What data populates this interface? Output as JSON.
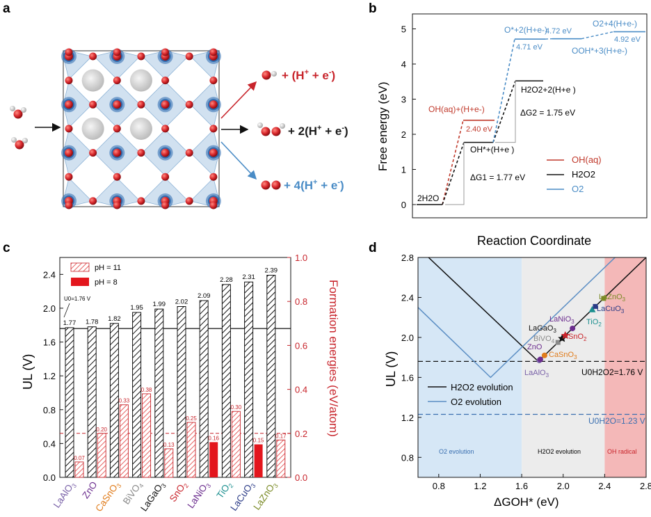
{
  "figure": {
    "panel_labels": {
      "a": "a",
      "b": "b",
      "c": "c",
      "d": "d"
    }
  },
  "panel_a": {
    "paths": [
      {
        "text": "+ (H",
        "sup": "+",
        "text2": " + e",
        "sup2": "-",
        "text3": ")",
        "color": "#c8242b"
      },
      {
        "text": "+ 2(H",
        "sup": "+",
        "text2": " + e",
        "sup2": "-",
        "text3": ")",
        "color": "#1a1a1a"
      },
      {
        "text": "+ 4(H",
        "sup": "+",
        "text2": " + e",
        "sup2": "-",
        "text3": ")",
        "color": "#4a8cc6"
      }
    ],
    "colors": {
      "oxygen": "#d7262b",
      "metal_blue": "#2d6bb0",
      "octahedron": "#c9dcee",
      "a_site": "#d0d0d0",
      "frame": "#555555"
    }
  },
  "panel_b": {
    "chart_data": {
      "type": "line",
      "title": "",
      "xlabel": "Reaction Coordinate",
      "ylabel": "Free energy (eV)",
      "ylim": [
        -0.3,
        5.5
      ],
      "yticks": [
        0,
        1,
        2,
        3,
        4,
        5
      ],
      "x_states": [
        0,
        1,
        2,
        3
      ],
      "series": [
        {
          "name": "OH(aq)",
          "color": "#c0392b",
          "levels": [
            0,
            2.4
          ]
        },
        {
          "name": "H2O2",
          "color": "#111111",
          "levels": [
            0,
            1.77,
            3.52
          ]
        },
        {
          "name": "O2",
          "color": "#4a8cc6",
          "levels": [
            0,
            4.71,
            4.72,
            4.92
          ]
        }
      ],
      "level_labels": {
        "start": "2H2O",
        "oh_aq": "OH(aq)+(H+e-)",
        "oh_star": "OH*+(H+e )",
        "h2o2": "H2O2+2(H+e )",
        "o_star": "O*+2(H+e-)",
        "ooh_star": "OOH*+3(H+e-)",
        "o2": "O2+4(H+e-)"
      },
      "annotations": {
        "v240": "2.40 eV",
        "dg1": "ΔG1 = 1.77 eV",
        "dg2": "ΔG2 = 1.75 eV",
        "v471": "4.71 eV",
        "v472": "4.72 eV",
        "v492": "4.92 eV"
      },
      "legend": [
        "OH(aq)",
        "H2O2",
        "O2"
      ],
      "legend_position": "bottom-right"
    }
  },
  "panel_c": {
    "chart_data": {
      "type": "bar",
      "title": "",
      "ylabel_left": "UL (V)",
      "ylabel_right": "Formation energies (eV/atom)",
      "ylim_left": [
        0,
        2.6
      ],
      "ylim_right": [
        0,
        1.0
      ],
      "yticks_left": [
        0.0,
        0.4,
        0.8,
        1.2,
        1.6,
        2.0,
        2.4
      ],
      "yticks_right": [
        0.0,
        0.2,
        0.4,
        0.6,
        0.8,
        1.0
      ],
      "categories": [
        "LaAlO3",
        "ZnO",
        "CaSnO3",
        "BiVO4",
        "LaGaO3",
        "SnO2",
        "LaNiO3",
        "TiO2",
        "LaCuO3",
        "LaZnO3"
      ],
      "category_colors": [
        "#7a62a8",
        "#6b2d8e",
        "#e07b1a",
        "#8a8a8a",
        "#111111",
        "#c8242b",
        "#6b2d8e",
        "#1b8f8f",
        "#2a3a86",
        "#7a8a25"
      ],
      "series": [
        {
          "name": "UL",
          "values": [
            1.77,
            1.78,
            1.82,
            1.95,
            1.99,
            2.02,
            2.09,
            2.28,
            2.31,
            2.39
          ]
        },
        {
          "name": "pH = 11",
          "values": [
            0.07,
            0.2,
            0.33,
            0.38,
            0.13,
            0.25,
            null,
            0.3,
            null,
            0.17
          ]
        },
        {
          "name": "pH = 8",
          "values": [
            null,
            null,
            null,
            null,
            null,
            null,
            0.16,
            null,
            0.15,
            null
          ]
        }
      ],
      "ul_labels": [
        "1.77",
        "1.78",
        "1.82",
        "1.95",
        "1.99",
        "2.02",
        "2.09",
        "2.28",
        "2.31",
        "2.39"
      ],
      "fe_labels": [
        "0.07",
        "0.20",
        "0.33",
        "0.38",
        "0.13",
        "0.25",
        "0.16",
        "0.30",
        "0.15",
        "0.17"
      ],
      "reference": {
        "label": "U0=1.76 V",
        "value": 1.76
      },
      "red_dash_right": 0.2,
      "legend": [
        "pH = 11",
        "pH = 8"
      ]
    }
  },
  "panel_d": {
    "chart_data": {
      "type": "line",
      "title": "",
      "xlabel": "ΔGOH* (eV)",
      "ylabel": "UL (V)",
      "xlim": [
        0.6,
        2.8
      ],
      "ylim": [
        0.6,
        2.8
      ],
      "xticks": [
        0.8,
        1.2,
        1.6,
        2.0,
        2.4,
        2.8
      ],
      "yticks": [
        0.8,
        1.2,
        1.6,
        2.0,
        2.4,
        2.8
      ],
      "regions": [
        {
          "label": "O2 evolution",
          "x": [
            0.6,
            1.6
          ],
          "color": "#d6e7f6"
        },
        {
          "label": "H2O2 evolution",
          "x": [
            1.6,
            2.4
          ],
          "color": "#ececec"
        },
        {
          "label": "OH radical",
          "x": [
            2.4,
            2.8
          ],
          "color": "#f4b8b8"
        }
      ],
      "series": [
        {
          "name": "H2O2 evolution",
          "color": "#111111",
          "x": [
            0.6,
            1.76,
            2.8
          ],
          "y": [
            2.9,
            1.76,
            2.8
          ]
        },
        {
          "name": "O2 evolution",
          "color": "#5b8ec4",
          "x": [
            0.6,
            1.3,
            2.8
          ],
          "y": [
            2.3,
            1.6,
            3.1
          ]
        }
      ],
      "points": [
        {
          "label": "LaAlO3",
          "x": 1.77,
          "y": 1.77,
          "color": "#7a62a8"
        },
        {
          "label": "ZnO",
          "x": 1.78,
          "y": 1.78,
          "color": "#6b2d8e"
        },
        {
          "label": "CaSnO3",
          "x": 1.82,
          "y": 1.82,
          "color": "#e07b1a"
        },
        {
          "label": "BiVO4",
          "x": 1.95,
          "y": 1.95,
          "color": "#8a8a8a"
        },
        {
          "label": "LaGaO3",
          "x": 1.99,
          "y": 1.99,
          "color": "#111111"
        },
        {
          "label": "SnO2",
          "x": 2.02,
          "y": 2.02,
          "color": "#c8242b"
        },
        {
          "label": "LaNiO3",
          "x": 2.09,
          "y": 2.09,
          "color": "#6b2d8e"
        },
        {
          "label": "TiO2",
          "x": 2.28,
          "y": 2.28,
          "color": "#1b8f8f"
        },
        {
          "label": "LaCuO3",
          "x": 2.31,
          "y": 2.31,
          "color": "#2a3a86"
        },
        {
          "label": "LaZnO3",
          "x": 2.39,
          "y": 2.39,
          "color": "#7a8a25"
        }
      ],
      "reference_lines": [
        {
          "label": "U0H2O2=1.76 V",
          "y": 1.76,
          "color": "#111111"
        },
        {
          "label": "U0H2O=1.23 V",
          "y": 1.23,
          "color": "#3a6fb0"
        }
      ],
      "legend": [
        "H2O2 evolution",
        "O2 evolution"
      ],
      "legend_position": "lower-left"
    }
  }
}
